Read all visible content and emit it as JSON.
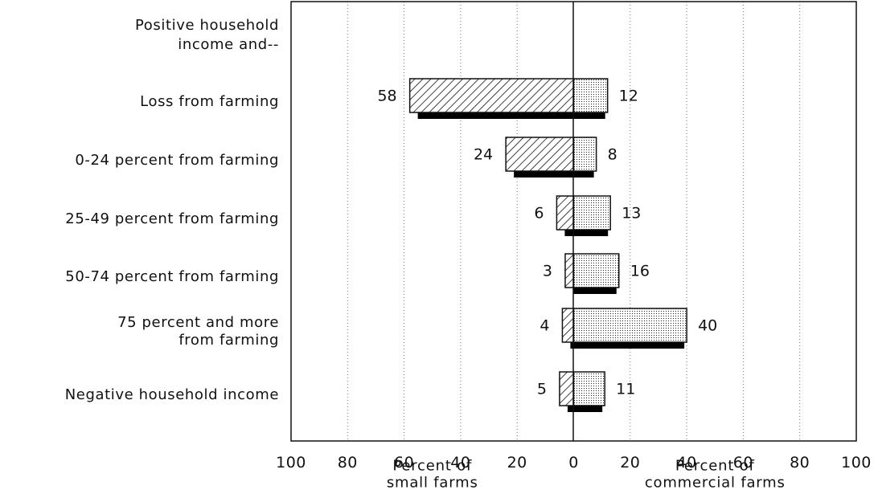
{
  "chart_data": {
    "type": "bar",
    "orientation": "horizontal",
    "header_label": [
      "Positive household",
      "income and--"
    ],
    "categories": [
      [
        "Loss from farming"
      ],
      [
        "0-24 percent from farming"
      ],
      [
        "25-49 percent from farming"
      ],
      [
        "50-74 percent from farming"
      ],
      [
        "75 percent and more",
        "from farming"
      ],
      [
        "Negative household income"
      ]
    ],
    "series": [
      {
        "side": "left",
        "pattern": "hatched",
        "values": [
          58,
          24,
          6,
          3,
          4,
          5
        ]
      },
      {
        "side": "right",
        "pattern": "dotted",
        "values": [
          12,
          8,
          13,
          16,
          40,
          11
        ]
      }
    ],
    "x_ticks": [
      "100",
      "80",
      "60",
      "40",
      "20",
      "0",
      "20",
      "40",
      "60",
      "80",
      "100"
    ],
    "xlim": [
      -100,
      100
    ],
    "left_axis_title": [
      "Percent of",
      "small farms"
    ],
    "right_axis_title": [
      "Percent of",
      "commercial farms"
    ],
    "grid": true,
    "colors": {
      "ink": "#111111",
      "shadow": "#000000",
      "background": "#ffffff"
    }
  }
}
